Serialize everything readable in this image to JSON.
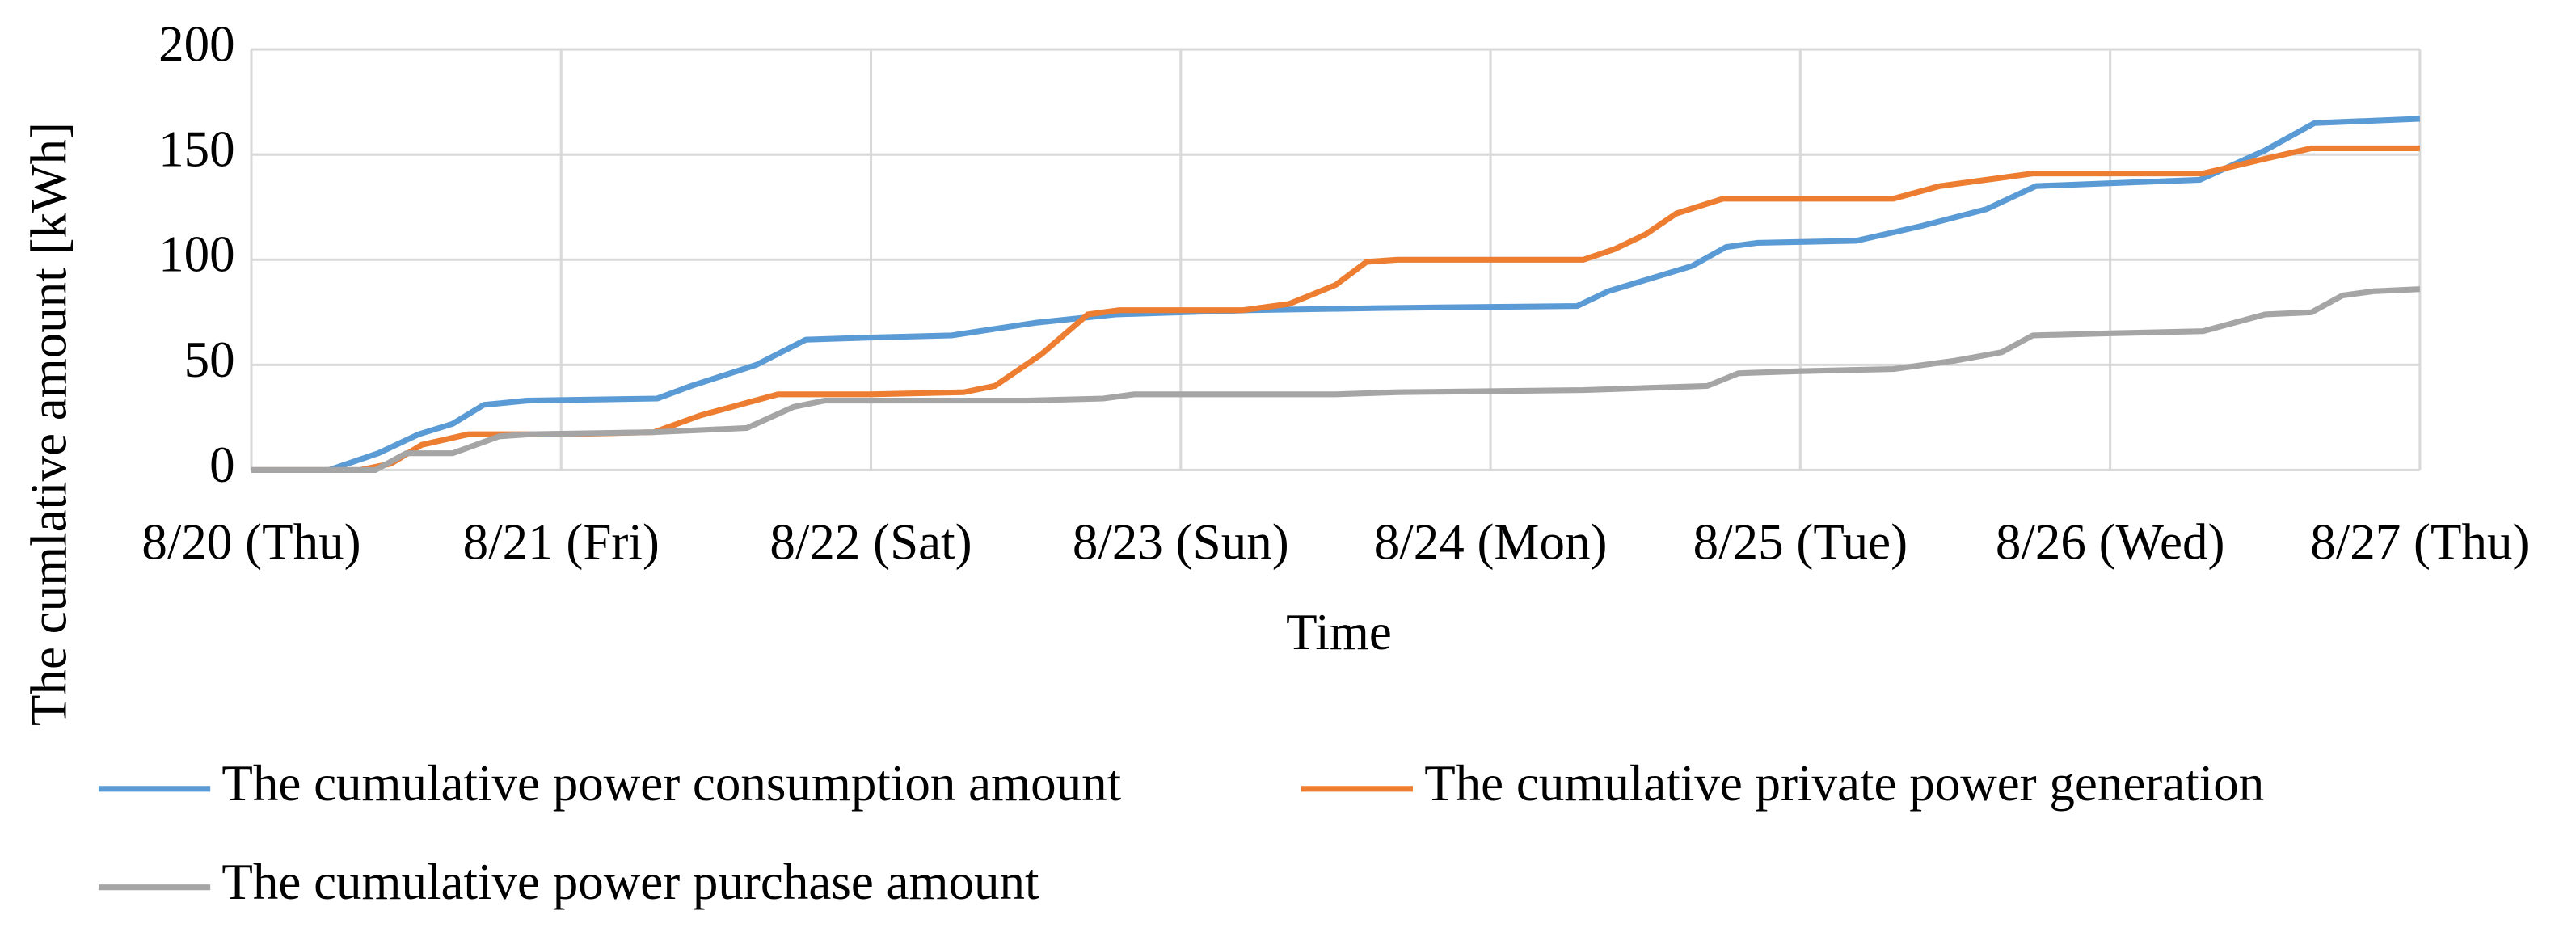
{
  "chart_data": {
    "type": "line",
    "x_label": "Time",
    "y_label": "The cumlative amount [kWh]",
    "xlim": [
      0,
      7
    ],
    "xticks": [
      {
        "value": 0,
        "label": "8/20 (Thu)"
      },
      {
        "value": 1,
        "label": "8/21 (Fri)"
      },
      {
        "value": 2,
        "label": "8/22 (Sat)"
      },
      {
        "value": 3,
        "label": "8/23 (Sun)"
      },
      {
        "value": 4,
        "label": "8/24 (Mon)"
      },
      {
        "value": 5,
        "label": "8/25 (Tue)"
      },
      {
        "value": 6,
        "label": "8/26 (Wed)"
      },
      {
        "value": 7,
        "label": "8/27 (Thu)"
      }
    ],
    "ylim": [
      0,
      200
    ],
    "yticks": [
      0,
      50,
      100,
      150,
      200
    ],
    "grid": true,
    "legend": "bottom",
    "series": [
      {
        "name": "The cumulative power consumption amount",
        "color": "#5b9bd5",
        "x": [
          0,
          0.25,
          0.41,
          0.54,
          0.65,
          0.75,
          0.89,
          1.31,
          1.42,
          1.63,
          1.79,
          2.0,
          2.26,
          2.53,
          2.79,
          3.22,
          3.64,
          4.28,
          4.38,
          4.65,
          4.76,
          4.86,
          5.18,
          5.39,
          5.6,
          5.76,
          6.29,
          6.5,
          6.66,
          7
        ],
        "values": [
          0,
          0,
          8,
          17,
          22,
          31,
          33,
          34,
          40,
          50,
          62,
          63,
          64,
          70,
          74,
          76,
          77,
          78,
          85,
          97,
          106,
          108,
          109,
          116,
          124,
          135,
          138,
          152,
          165,
          167
        ]
      },
      {
        "name": "The cumulative private power generation",
        "color": "#ed7d31",
        "x": [
          0,
          0.35,
          0.45,
          0.55,
          0.7,
          1.0,
          1.3,
          1.45,
          1.6,
          1.7,
          2.0,
          2.3,
          2.4,
          2.55,
          2.7,
          2.8,
          3.2,
          3.35,
          3.5,
          3.6,
          3.7,
          4.3,
          4.4,
          4.5,
          4.6,
          4.75,
          5.0,
          5.3,
          5.45,
          5.65,
          5.75,
          6.3,
          6.5,
          6.65,
          7
        ],
        "values": [
          0,
          0,
          3,
          12,
          17,
          17,
          18,
          26,
          32,
          36,
          36,
          37,
          40,
          55,
          74,
          76,
          76,
          79,
          88,
          99,
          100,
          100,
          105,
          112,
          122,
          129,
          129,
          129,
          135,
          139,
          141,
          141,
          148,
          153,
          153
        ]
      },
      {
        "name": "The cumulative power purchase amount",
        "color": "#a5a5a5",
        "x": [
          0,
          0.4,
          0.5,
          0.65,
          0.8,
          0.9,
          1.3,
          1.6,
          1.75,
          1.85,
          2.5,
          2.75,
          2.85,
          3.5,
          3.7,
          4.3,
          4.5,
          4.7,
          4.8,
          5.0,
          5.3,
          5.5,
          5.65,
          5.75,
          6.0,
          6.3,
          6.5,
          6.65,
          6.75,
          6.85,
          7
        ],
        "values": [
          0,
          0,
          8,
          8,
          16,
          17,
          18,
          20,
          30,
          33,
          33,
          34,
          36,
          36,
          37,
          38,
          39,
          40,
          46,
          47,
          48,
          52,
          56,
          64,
          65,
          66,
          74,
          75,
          83,
          85,
          86
        ]
      }
    ]
  }
}
